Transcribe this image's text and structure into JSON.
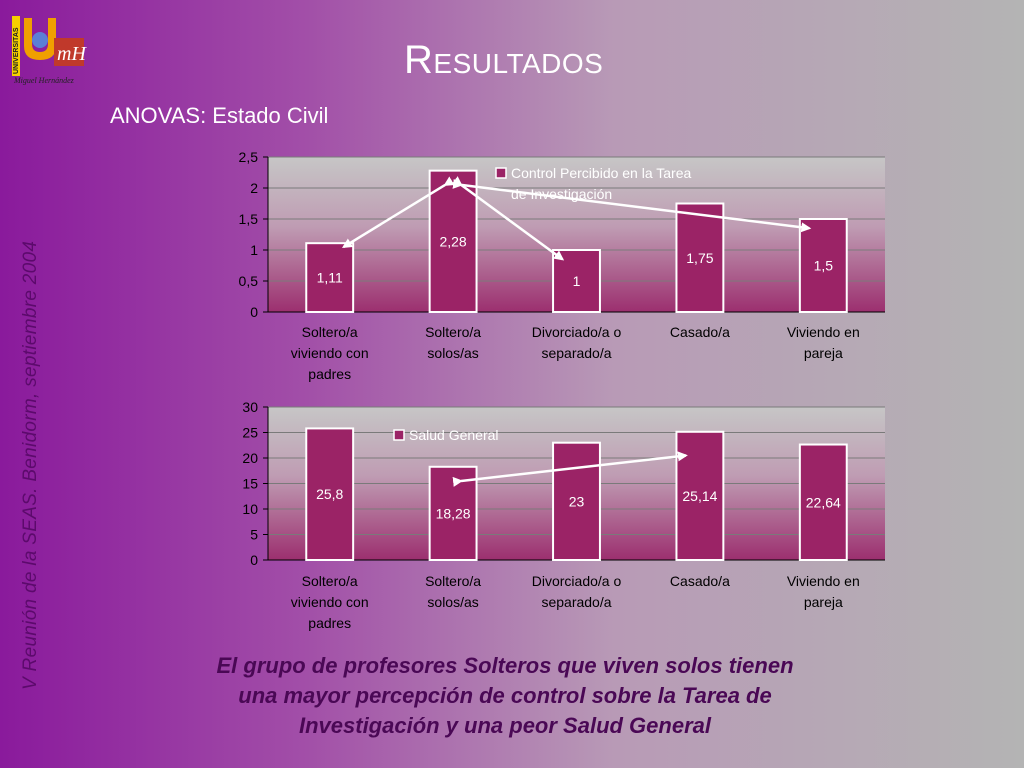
{
  "logo": {
    "vertical_text": "UNIVERSITAS",
    "monogram": "mH",
    "caption": "Miguel Hernández"
  },
  "vertical_caption": "V Reunión de la SEAS. Benidorm, septiembre 2004",
  "title": "Resultados",
  "subtitle": "ANOVAS: Estado Civil",
  "conclusion_lines": [
    "El grupo de profesores Solteros que viven solos tienen",
    "una mayor percepción de control sobre la Tarea de",
    "Investigación y una peor Salud General"
  ],
  "colors": {
    "bar": "#9b2366",
    "plot_top": "#c4c4c4",
    "plot_bottom": "#9a3070",
    "arrow": "#ffffff"
  },
  "chart_data": [
    {
      "type": "bar",
      "categories": [
        [
          "Soltero/a",
          "viviendo con",
          "padres"
        ],
        [
          "Soltero/a",
          "solos/as"
        ],
        [
          "Divorciado/a o",
          "separado/a"
        ],
        [
          "Casado/a"
        ],
        [
          "Viviendo en",
          "pareja"
        ]
      ],
      "series": [
        {
          "name": "Control Percibido en la Tarea de Investigación",
          "name_lines": [
            "Control Percibido en la Tarea",
            "de Investigación"
          ],
          "values": [
            1.11,
            2.28,
            1,
            1.75,
            1.5
          ],
          "labels": [
            "1,11",
            "2,28",
            "1",
            "1,75",
            "1,5"
          ]
        }
      ],
      "ylim": [
        0,
        2.5
      ],
      "yticks": [
        0,
        0.5,
        1,
        1.5,
        2,
        2.5
      ],
      "ytick_labels": [
        "0",
        "0,5",
        "1",
        "1,5",
        "2",
        "2,5"
      ],
      "grid": true,
      "legend": "top-right",
      "annotations": [
        "arrows from Soltero/a solos/as bar to the other bars"
      ]
    },
    {
      "type": "bar",
      "categories": [
        [
          "Soltero/a",
          "viviendo con",
          "padres"
        ],
        [
          "Soltero/a",
          "solos/as"
        ],
        [
          "Divorciado/a o",
          "separado/a"
        ],
        [
          "Casado/a"
        ],
        [
          "Viviendo en",
          "pareja"
        ]
      ],
      "series": [
        {
          "name": "Salud General",
          "name_lines": [
            "Salud General"
          ],
          "values": [
            25.8,
            18.28,
            23,
            25.14,
            22.64
          ],
          "labels": [
            "25,8",
            "18,28",
            "23",
            "25,14",
            "22,64"
          ]
        }
      ],
      "ylim": [
        0,
        30
      ],
      "yticks": [
        0,
        5,
        10,
        15,
        20,
        25,
        30
      ],
      "ytick_labels": [
        "0",
        "5",
        "10",
        "15",
        "20",
        "25",
        "30"
      ],
      "grid": true,
      "legend": "top-center",
      "annotations": [
        "arrow between Soltero/a solos/as and Casado/a bars"
      ]
    }
  ]
}
